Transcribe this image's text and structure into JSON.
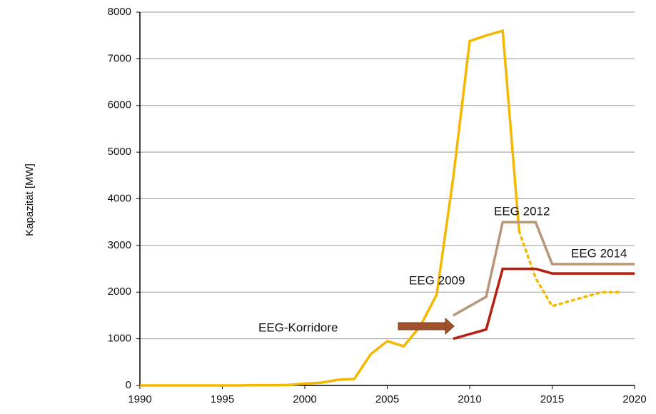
{
  "chart_data": {
    "type": "line",
    "y_label": "Kapazität  [MW]",
    "xlim": [
      1990,
      2020
    ],
    "xticks": [
      1990,
      1995,
      2000,
      2005,
      2010,
      2015,
      2020
    ],
    "ylim": [
      0,
      8000
    ],
    "yticks": [
      0,
      1000,
      2000,
      3000,
      4000,
      5000,
      6000,
      7000,
      8000
    ],
    "grid": true,
    "annotations": [
      "EEG-Korridore",
      "EEG 2009",
      "EEG 2012",
      "EEG 2014"
    ],
    "series": [
      {
        "color": "#f5b800",
        "style": "solid",
        "x": [
          1990,
          1991,
          1992,
          1993,
          1994,
          1995,
          1996,
          1997,
          1998,
          1999,
          2000,
          2001,
          2002,
          2003,
          2004,
          2005,
          2006,
          2007,
          2008,
          2009,
          2010,
          2011,
          2012,
          2013
        ],
        "values": [
          0,
          0,
          0,
          0,
          0,
          0,
          0,
          5,
          5,
          10,
          40,
          60,
          120,
          140,
          670,
          950,
          840,
          1270,
          1950,
          4450,
          7380,
          7500,
          7600,
          3300
        ]
      },
      {
        "color": "#f5b800",
        "style": "dotted",
        "x": [
          2013,
          2014,
          2015,
          2016,
          2017,
          2018,
          2019
        ],
        "values": [
          3300,
          2300,
          1700,
          1800,
          1900,
          2000,
          2000
        ]
      },
      {
        "color": "#b5977a",
        "style": "solid",
        "x": [
          2009,
          2011,
          2012,
          2014,
          2015,
          2020
        ],
        "values": [
          1500,
          1900,
          3500,
          3500,
          2600,
          2600
        ]
      },
      {
        "color": "#b81e0c",
        "style": "solid",
        "x": [
          2009,
          2011,
          2012,
          2014,
          2015,
          2020
        ],
        "values": [
          1000,
          1200,
          2500,
          2500,
          2400,
          2400
        ]
      }
    ]
  }
}
